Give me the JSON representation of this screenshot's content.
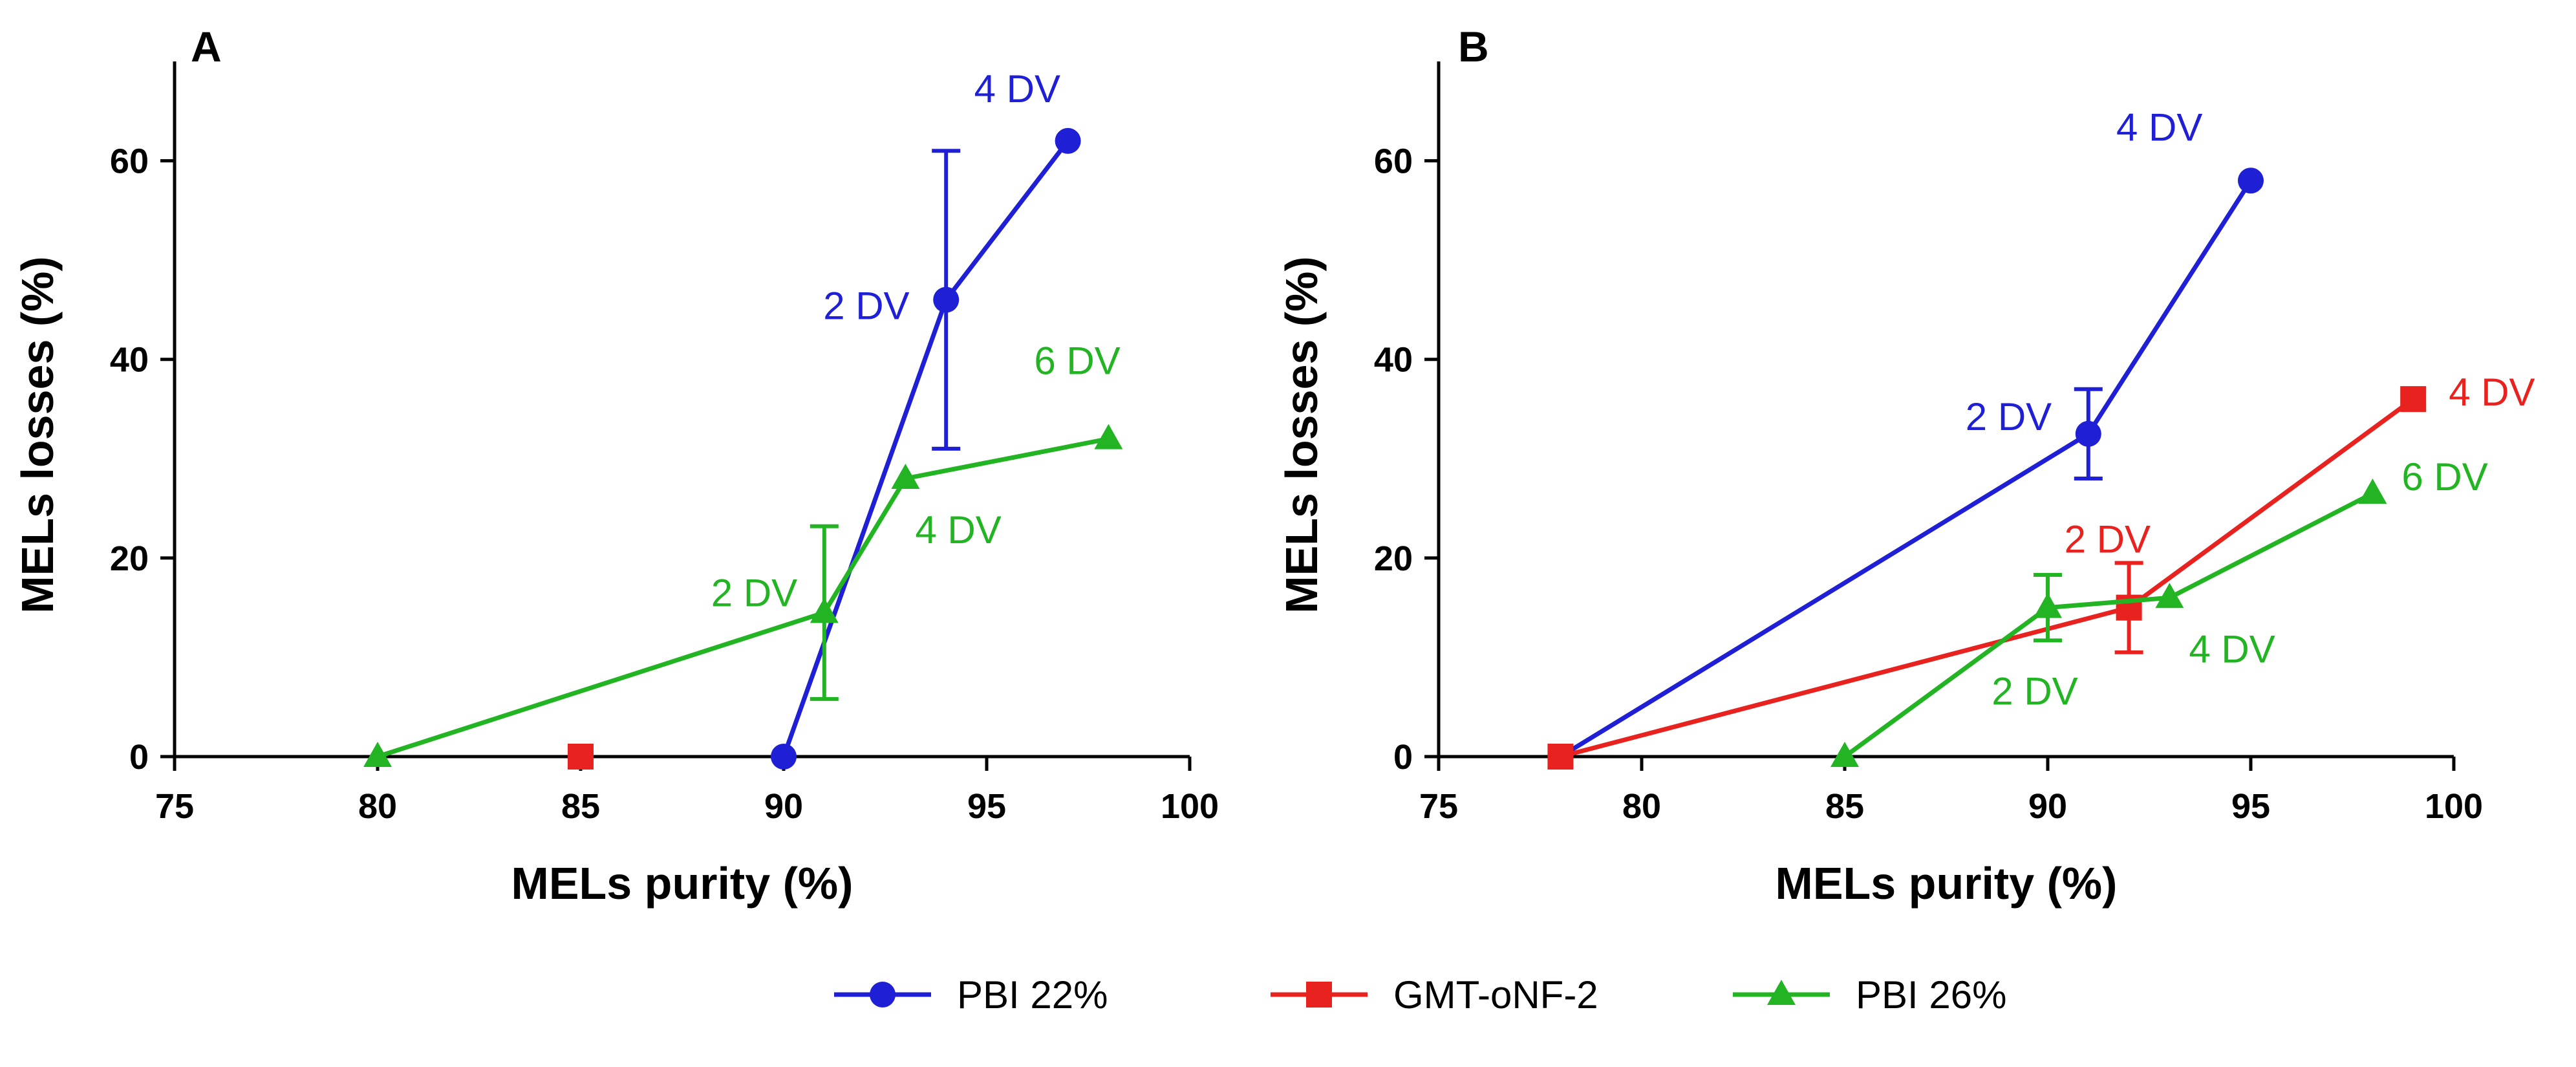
{
  "legend": [
    {
      "name": "PBI 22%",
      "color": "#1f1fd6",
      "marker": "circle"
    },
    {
      "name": "GMT-oNF-2",
      "color": "#e8221f",
      "marker": "square"
    },
    {
      "name": "PBI 26%",
      "color": "#22b422",
      "marker": "triangle"
    }
  ],
  "chart_data": [
    {
      "type": "line",
      "panel": "A",
      "xlabel": "MELs purity (%)",
      "ylabel": "MELs losses (%)",
      "xlim": [
        75,
        100
      ],
      "ylim": [
        0,
        70
      ],
      "xticks": [
        75,
        80,
        85,
        90,
        95,
        100
      ],
      "yticks": [
        0,
        20,
        40,
        60
      ],
      "series": [
        {
          "name": "PBI 22%",
          "color": "#1f1fd6",
          "marker": "circle",
          "points": [
            {
              "x": 90,
              "y": 0,
              "label": ""
            },
            {
              "x": 94,
              "y": 46,
              "label": "2 DV",
              "err": 15
            },
            {
              "x": 97,
              "y": 62,
              "label": "4 DV"
            }
          ]
        },
        {
          "name": "GMT-oNF-2",
          "color": "#e8221f",
          "marker": "square",
          "points": [
            {
              "x": 85,
              "y": 0,
              "label": ""
            }
          ]
        },
        {
          "name": "PBI 26%",
          "color": "#22b422",
          "marker": "triangle",
          "points": [
            {
              "x": 80,
              "y": 0,
              "label": ""
            },
            {
              "x": 91,
              "y": 14.5,
              "label": "2 DV",
              "err": 8.7
            },
            {
              "x": 93,
              "y": 28,
              "label": "4 DV"
            },
            {
              "x": 98,
              "y": 32,
              "label": "6 DV"
            }
          ]
        }
      ]
    },
    {
      "type": "line",
      "panel": "B",
      "xlabel": "MELs purity (%)",
      "ylabel": "MELs losses (%)",
      "xlim": [
        75,
        100
      ],
      "ylim": [
        0,
        70
      ],
      "xticks": [
        75,
        80,
        85,
        90,
        95,
        100
      ],
      "yticks": [
        0,
        20,
        40,
        60
      ],
      "series": [
        {
          "name": "PBI 22%",
          "color": "#1f1fd6",
          "marker": "circle",
          "points": [
            {
              "x": 78,
              "y": 0,
              "label": ""
            },
            {
              "x": 91,
              "y": 32.5,
              "label": "2 DV",
              "err": 4.5
            },
            {
              "x": 95,
              "y": 58,
              "label": "4 DV"
            }
          ]
        },
        {
          "name": "GMT-oNF-2",
          "color": "#e8221f",
          "marker": "square",
          "points": [
            {
              "x": 78,
              "y": 0,
              "label": ""
            },
            {
              "x": 92,
              "y": 15,
              "label": "2 DV",
              "err": 4.5
            },
            {
              "x": 99,
              "y": 36,
              "label": "4 DV"
            }
          ]
        },
        {
          "name": "PBI 26%",
          "color": "#22b422",
          "marker": "triangle",
          "points": [
            {
              "x": 85,
              "y": 0,
              "label": ""
            },
            {
              "x": 90,
              "y": 15,
              "label": "2 DV",
              "err": 3.3
            },
            {
              "x": 93,
              "y": 16,
              "label": "4 DV"
            },
            {
              "x": 98,
              "y": 26.5,
              "label": "6 DV"
            }
          ]
        }
      ]
    }
  ]
}
